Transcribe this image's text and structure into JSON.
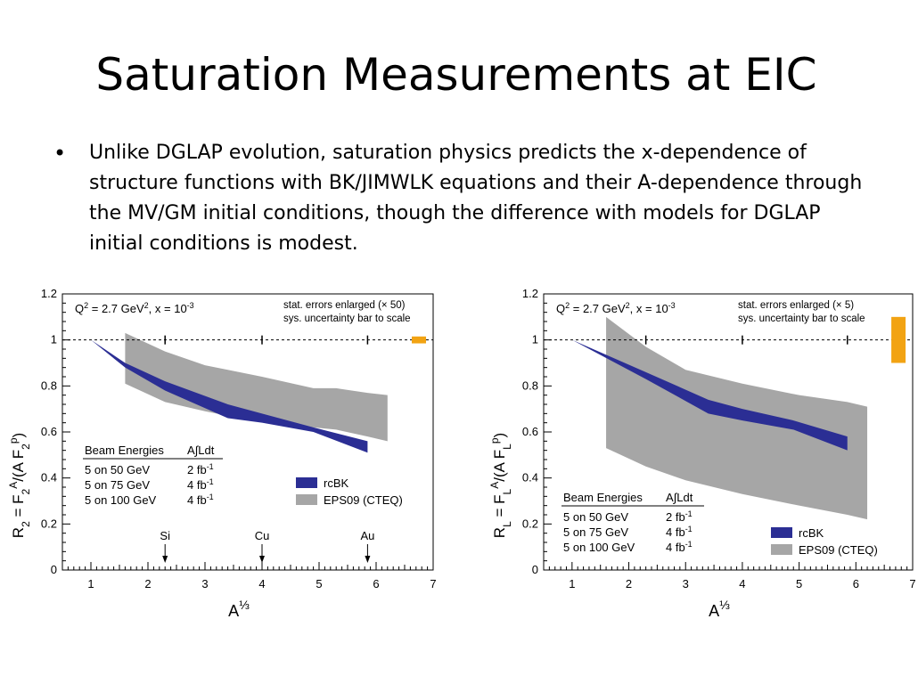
{
  "slide": {
    "title": "Saturation Measurements at EIC",
    "bullet": "Unlike DGLAP evolution, saturation physics predicts the x-dependence of structure functions with BK/JIMWLK equations and their A-dependence through the MV/GM initial conditions, though the difference with models for DGLAP initial conditions is modest."
  },
  "colors": {
    "rcbk": "#2b2e94",
    "eps09": "#a6a6a6",
    "sys_bar": "#f2a313"
  },
  "chart_data": [
    {
      "type": "area",
      "xlim": [
        0.5,
        7
      ],
      "ylim": [
        0,
        1.2
      ],
      "xticks": [
        "1",
        "2",
        "3",
        "4",
        "5",
        "6",
        "7"
      ],
      "yticks": [
        "0",
        "0.2",
        "0.4",
        "0.6",
        "0.8",
        "1",
        "1.2"
      ],
      "xlabel_base": "A",
      "xlabel_sup": "⅓",
      "ylabel_parts": [
        {
          "t": "R"
        },
        {
          "t": "2",
          "s": "sub"
        },
        {
          "t": " = F"
        },
        {
          "t": "2",
          "s": "sub"
        },
        {
          "t": "A",
          "s": "sup"
        },
        {
          "t": "/(A F"
        },
        {
          "t": "2",
          "s": "sub"
        },
        {
          "t": "p",
          "s": "sup"
        },
        {
          "t": ")"
        }
      ],
      "condition_parts": [
        {
          "t": "Q"
        },
        {
          "t": "2",
          "s": "sup"
        },
        {
          "t": " = 2.7 GeV"
        },
        {
          "t": "2",
          "s": "sup"
        },
        {
          "t": ", x = 10"
        },
        {
          "t": "-3",
          "s": "sup"
        }
      ],
      "note_lines": [
        "stat. errors enlarged (× 50)",
        "sys. uncertainty bar to scale"
      ],
      "table": {
        "headers": [
          "Beam Energies",
          "A∫Ldt"
        ],
        "rows": [
          {
            "energy": "5 on 50 GeV",
            "lumi": "2 fb",
            "exp": "-1"
          },
          {
            "energy": "5 on 75 GeV",
            "lumi": "4 fb",
            "exp": "-1"
          },
          {
            "energy": "5 on 100 GeV",
            "lumi": "4 fb",
            "exp": "-1"
          }
        ]
      },
      "legend": [
        "rcBK",
        "EPS09 (CTEQ)"
      ],
      "series": [
        {
          "key": "rcbk",
          "x": [
            1.0,
            1.6,
            2.3,
            3.4,
            4.0,
            4.9,
            5.85
          ],
          "upper": [
            1.0,
            0.9,
            0.82,
            0.72,
            0.68,
            0.62,
            0.56
          ],
          "lower": [
            1.0,
            0.88,
            0.78,
            0.66,
            0.64,
            0.6,
            0.51
          ]
        },
        {
          "key": "eps09",
          "x": [
            1.6,
            2.3,
            3.0,
            3.4,
            4.0,
            4.9,
            5.3,
            5.85,
            6.2
          ],
          "upper": [
            1.03,
            0.95,
            0.89,
            0.87,
            0.84,
            0.79,
            0.79,
            0.77,
            0.76
          ],
          "lower": [
            0.81,
            0.73,
            0.69,
            0.67,
            0.65,
            0.62,
            0.61,
            0.58,
            0.56
          ]
        }
      ],
      "reference_line": 1.0,
      "stat_error_ticks_x": [
        2.3,
        4.0,
        5.85
      ],
      "sys_bar": {
        "x": 6.75,
        "y_low": 0.985,
        "y_high": 1.015
      },
      "nuclei": [
        {
          "label": "Si",
          "x": 2.3
        },
        {
          "label": "Cu",
          "x": 4.0
        },
        {
          "label": "Au",
          "x": 5.85
        }
      ]
    },
    {
      "type": "area",
      "xlim": [
        0.5,
        7
      ],
      "ylim": [
        0,
        1.2
      ],
      "xticks": [
        "1",
        "2",
        "3",
        "4",
        "5",
        "6",
        "7"
      ],
      "yticks": [
        "0",
        "0.2",
        "0.4",
        "0.6",
        "0.8",
        "1",
        "1.2"
      ],
      "xlabel_base": "A",
      "xlabel_sup": "⅓",
      "ylabel_parts": [
        {
          "t": "R"
        },
        {
          "t": "L",
          "s": "sub"
        },
        {
          "t": " = F"
        },
        {
          "t": "L",
          "s": "sub"
        },
        {
          "t": "A",
          "s": "sup"
        },
        {
          "t": "/(A F"
        },
        {
          "t": "L",
          "s": "sub"
        },
        {
          "t": "p",
          "s": "sup"
        },
        {
          "t": ")"
        }
      ],
      "condition_parts": [
        {
          "t": "Q"
        },
        {
          "t": "2",
          "s": "sup"
        },
        {
          "t": " = 2.7 GeV"
        },
        {
          "t": "2",
          "s": "sup"
        },
        {
          "t": ", x = 10"
        },
        {
          "t": "-3",
          "s": "sup"
        }
      ],
      "note_lines": [
        "stat. errors enlarged (× 5)",
        "sys. uncertainty bar to scale"
      ],
      "table": {
        "headers": [
          "Beam Energies",
          "A∫Ldt"
        ],
        "rows": [
          {
            "energy": "5 on 50 GeV",
            "lumi": "2 fb",
            "exp": "-1"
          },
          {
            "energy": "5 on 75 GeV",
            "lumi": "4 fb",
            "exp": "-1"
          },
          {
            "energy": "5 on 100 GeV",
            "lumi": "4 fb",
            "exp": "-1"
          }
        ]
      },
      "legend": [
        "rcBK",
        "EPS09 (CTEQ)"
      ],
      "series": [
        {
          "key": "rcbk",
          "x": [
            1.0,
            2.3,
            3.4,
            4.0,
            4.9,
            5.85
          ],
          "upper": [
            1.0,
            0.86,
            0.74,
            0.7,
            0.65,
            0.58
          ],
          "lower": [
            1.0,
            0.83,
            0.68,
            0.65,
            0.61,
            0.52
          ]
        },
        {
          "key": "eps09",
          "x": [
            1.6,
            2.3,
            3.0,
            4.0,
            5.0,
            5.85,
            6.2
          ],
          "upper": [
            1.1,
            0.97,
            0.87,
            0.81,
            0.76,
            0.73,
            0.71
          ],
          "lower": [
            0.53,
            0.45,
            0.39,
            0.33,
            0.28,
            0.24,
            0.22
          ]
        }
      ],
      "reference_line": 1.0,
      "stat_error_ticks_x": [
        2.3,
        4.0,
        5.85
      ],
      "sys_bar": {
        "x": 6.75,
        "y_low": 0.9,
        "y_high": 1.1
      },
      "nuclei": []
    }
  ]
}
